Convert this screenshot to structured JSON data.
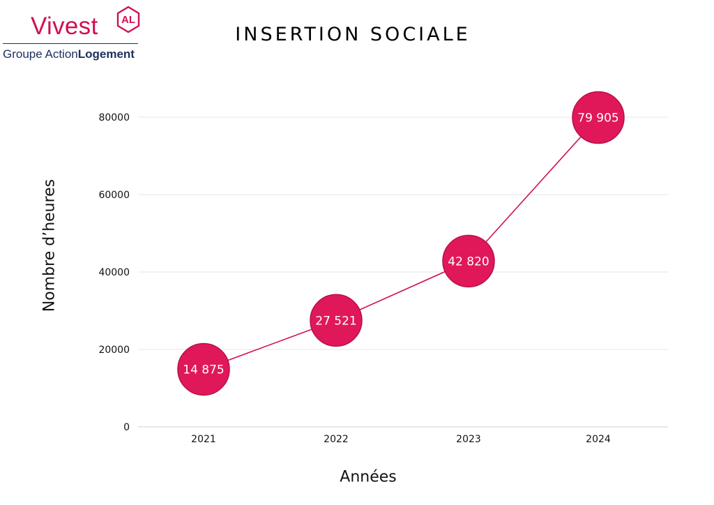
{
  "logo": {
    "brand": "Vivest",
    "mark": "AL",
    "group_regular": "Groupe Action",
    "group_bold": "Logement"
  },
  "chart_data": {
    "type": "line",
    "title": "INSERTION SOCIALE",
    "xlabel": "Années",
    "ylabel": "Nombre d’heures",
    "categories": [
      "2021",
      "2022",
      "2023",
      "2024"
    ],
    "values": [
      14875,
      27521,
      42820,
      79905
    ],
    "data_labels": [
      "14 875",
      "27 521",
      "42 820",
      "79 905"
    ],
    "ylim": [
      0,
      80000
    ],
    "yticks": [
      "0",
      "20000",
      "40000",
      "60000",
      "80000"
    ],
    "grid": true,
    "legend": "none",
    "colors": {
      "series": "#d0114e",
      "marker": "#e0185a",
      "marker_stroke": "#b8104a",
      "grid": "#e6e6e6",
      "label": "#ffffff"
    }
  }
}
